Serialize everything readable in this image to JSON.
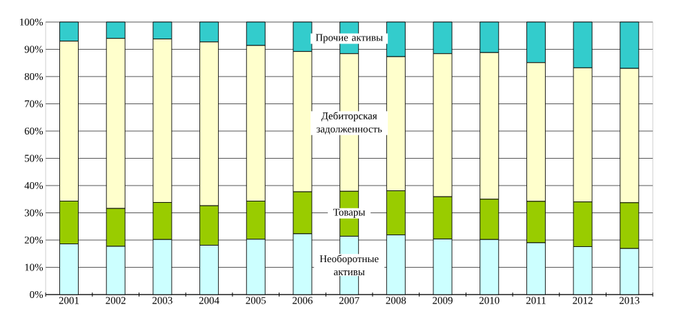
{
  "chart_data": {
    "type": "bar",
    "stacked": true,
    "categories": [
      "2001",
      "2002",
      "2003",
      "2004",
      "2005",
      "2006",
      "2007",
      "2008",
      "2009",
      "2010",
      "2011",
      "2012",
      "2013"
    ],
    "series": [
      {
        "name": "Необоротные активы",
        "color": "#ccffff",
        "values": [
          18.6,
          17.7,
          20.2,
          18.1,
          20.3,
          22.3,
          21.4,
          21.9,
          20.4,
          20.2,
          19.0,
          17.6,
          16.9
        ]
      },
      {
        "name": "Товары",
        "color": "#99cc00",
        "values": [
          15.7,
          13.9,
          13.6,
          14.5,
          14.0,
          15.4,
          16.5,
          16.2,
          15.5,
          14.8,
          15.2,
          16.4,
          16.8
        ]
      },
      {
        "name": "Дебиторская задолженность",
        "color": "#ffffcc",
        "values": [
          58.7,
          62.4,
          60.0,
          60.1,
          57.1,
          51.5,
          50.5,
          49.2,
          52.5,
          53.8,
          50.9,
          49.2,
          49.3
        ]
      },
      {
        "name": "Прочие активы",
        "color": "#33cccc",
        "values": [
          7.0,
          6.0,
          6.2,
          7.3,
          8.6,
          10.8,
          11.6,
          12.7,
          11.6,
          11.2,
          14.9,
          16.8,
          17.0
        ]
      }
    ],
    "ylim": [
      0,
      100
    ],
    "yticks": [
      {
        "value": 0,
        "label": "0%"
      },
      {
        "value": 10,
        "label": "10%"
      },
      {
        "value": 20,
        "label": "20%"
      },
      {
        "value": 30,
        "label": "30%"
      },
      {
        "value": 40,
        "label": "40%"
      },
      {
        "value": 50,
        "label": "50%"
      },
      {
        "value": 60,
        "label": "60%"
      },
      {
        "value": 70,
        "label": "70%"
      },
      {
        "value": 80,
        "label": "80%"
      },
      {
        "value": 90,
        "label": "90%"
      },
      {
        "value": 100,
        "label": "100%"
      }
    ],
    "grid": "y"
  }
}
